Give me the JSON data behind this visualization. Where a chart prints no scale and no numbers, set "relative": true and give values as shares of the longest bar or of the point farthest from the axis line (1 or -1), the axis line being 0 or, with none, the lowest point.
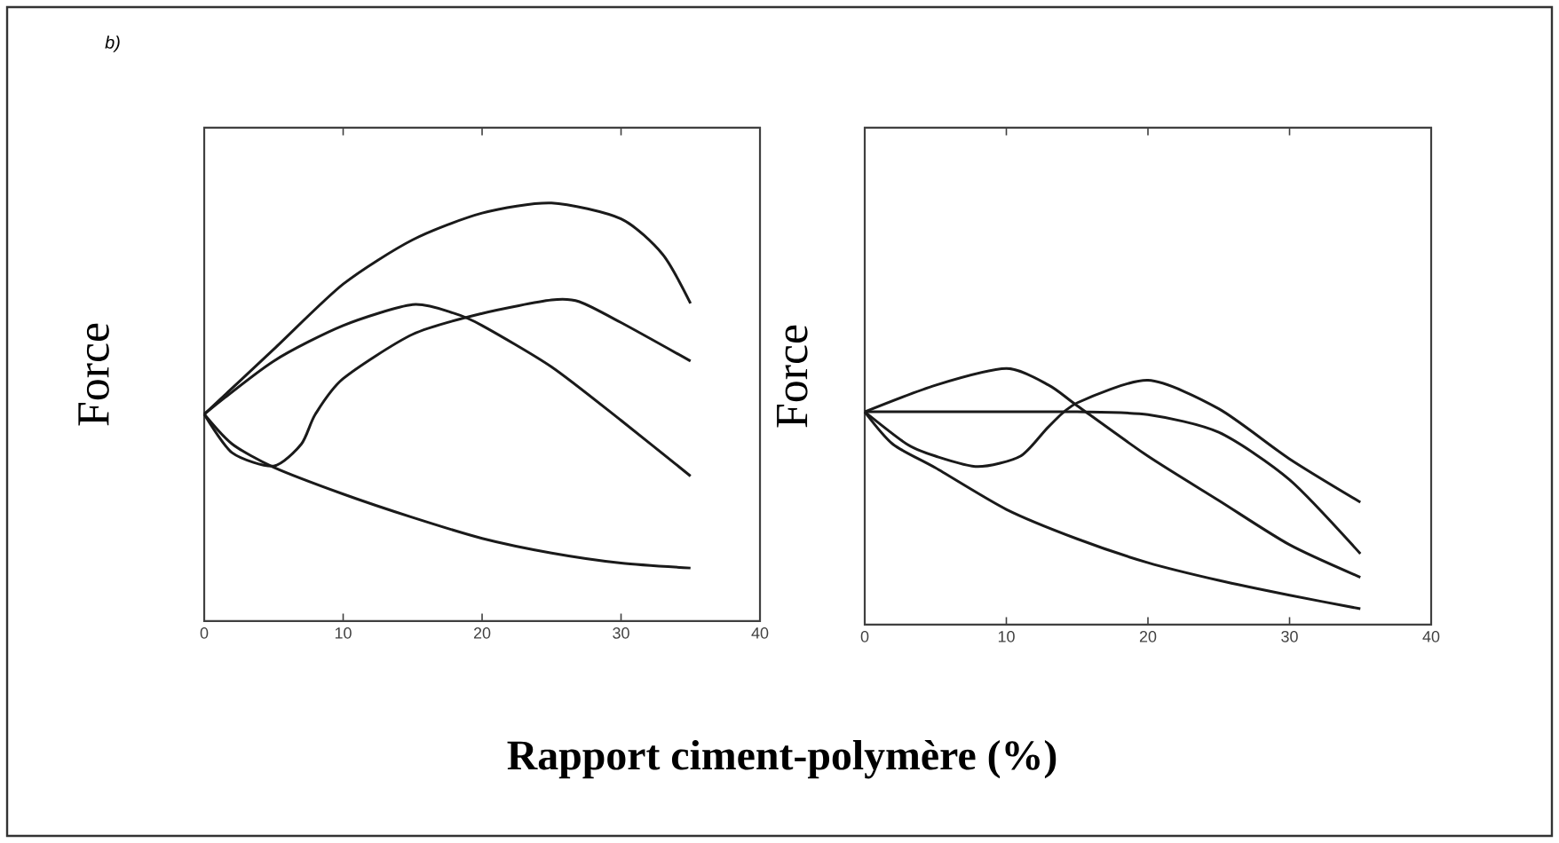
{
  "chart_data": [
    {
      "type": "line",
      "relative": true,
      "xlim": [
        0,
        40
      ],
      "xticks": [
        0,
        10,
        20,
        30,
        40
      ],
      "xlabel": "Rapport ciment-polymère (%)",
      "ylabel": "Force",
      "annotations": [
        "b)"
      ],
      "series": [
        {
          "color": "#1a1a1a",
          "x": [
            0,
            5,
            10,
            15,
            20,
            25,
            30,
            33,
            35
          ],
          "values": [
            0.495,
            0.65,
            0.806,
            0.912,
            0.976,
            1.0,
            0.962,
            0.877,
            0.76
          ]
        },
        {
          "color": "#1a1a1a",
          "x": [
            0,
            5,
            10,
            15,
            18,
            20,
            25,
            30,
            35
          ],
          "values": [
            0.495,
            0.622,
            0.707,
            0.757,
            0.736,
            0.707,
            0.608,
            0.48,
            0.347
          ]
        },
        {
          "color": "#1a1a1a",
          "x": [
            0,
            2,
            5,
            7,
            8,
            10,
            15,
            20,
            25,
            27,
            30,
            35
          ],
          "values": [
            0.495,
            0.403,
            0.371,
            0.424,
            0.495,
            0.58,
            0.686,
            0.736,
            0.768,
            0.764,
            0.714,
            0.622
          ]
        },
        {
          "color": "#1a1a1a",
          "x": [
            0,
            2,
            5,
            10,
            15,
            20,
            25,
            30,
            35
          ],
          "values": [
            0.495,
            0.424,
            0.368,
            0.304,
            0.248,
            0.198,
            0.163,
            0.139,
            0.127
          ]
        }
      ]
    },
    {
      "type": "line",
      "relative": true,
      "xlim": [
        0,
        40
      ],
      "xticks": [
        0,
        10,
        20,
        30,
        40
      ],
      "ylabel": "Force",
      "series": [
        {
          "color": "#1a1a1a",
          "x": [
            0,
            5,
            10,
            13,
            15,
            20,
            25,
            30,
            35
          ],
          "values": [
            0.831,
            0.935,
            1.0,
            0.935,
            0.855,
            0.658,
            0.485,
            0.312,
            0.185
          ]
        },
        {
          "color": "#1a1a1a",
          "x": [
            0,
            3,
            5,
            8,
            11,
            13,
            15,
            20,
            25,
            30,
            35
          ],
          "values": [
            0.831,
            0.704,
            0.658,
            0.617,
            0.658,
            0.774,
            0.866,
            0.954,
            0.843,
            0.647,
            0.478
          ]
        },
        {
          "color": "#1a1a1a",
          "x": [
            0,
            5,
            10,
            15,
            20,
            25,
            30,
            35
          ],
          "values": [
            0.831,
            0.831,
            0.831,
            0.831,
            0.82,
            0.751,
            0.566,
            0.277
          ]
        },
        {
          "color": "#1a1a1a",
          "x": [
            0,
            2,
            5,
            10,
            15,
            20,
            25,
            30,
            35
          ],
          "values": [
            0.831,
            0.704,
            0.612,
            0.45,
            0.335,
            0.242,
            0.173,
            0.115,
            0.062
          ]
        }
      ]
    }
  ]
}
